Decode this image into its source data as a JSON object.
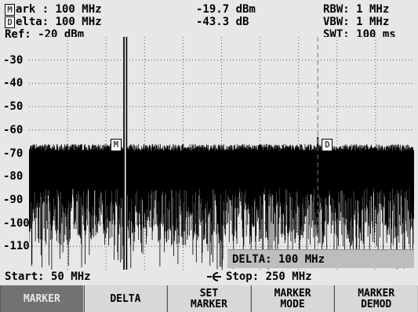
{
  "header": {
    "mark_prefix": "M",
    "mark_label": "ark : 100 MHz",
    "mark_level": "-19.7  dBm",
    "delta_prefix": "D",
    "delta_label": "elta: 100 MHz",
    "delta_level": "-43.3  dB",
    "rbw": "RBW: 1 MHz",
    "vbw": "VBW: 1 MHz",
    "ref": "Ref: -20 dBm",
    "swt": "SWT: 100 ms"
  },
  "chart_data": {
    "type": "line",
    "x_range_mhz": [
      50,
      250
    ],
    "y_range_dbm": [
      -120,
      -20
    ],
    "y_ticks": [
      "-30",
      "-40",
      "-50",
      "-60",
      "-70",
      "-80",
      "-90",
      "-100",
      "-110"
    ],
    "grid": true,
    "noise_floor_dbm": -70,
    "markers": [
      {
        "label": "M",
        "x_mhz": 100,
        "y_dbm": -19.7
      },
      {
        "label": "D",
        "x_mhz": 200,
        "y_dbm": -63
      }
    ]
  },
  "delta_readout": "DELTA: 100 MHz",
  "footer": {
    "start": "Start: 50 MHz",
    "stop": "Stop: 250 MHz",
    "input_icon": "input-connector-icon"
  },
  "softkeys": [
    {
      "label": "MARKER",
      "active": true
    },
    {
      "label": "DELTA",
      "active": false
    },
    {
      "label": "SET\nMARKER",
      "active": false
    },
    {
      "label": "MARKER\nMODE",
      "active": false
    },
    {
      "label": "MARKER\nDEMOD",
      "active": false
    }
  ]
}
